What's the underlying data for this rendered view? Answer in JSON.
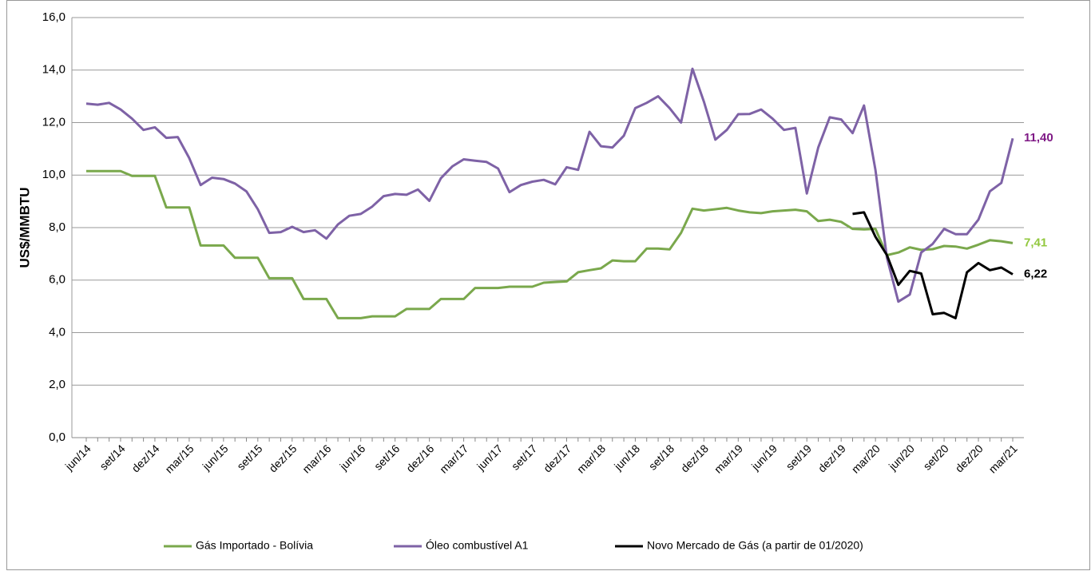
{
  "chart_data": {
    "type": "line",
    "ylabel": "US$/MMBTU",
    "categories": [
      "jun/14",
      null,
      null,
      "set/14",
      null,
      null,
      "dez/14",
      null,
      null,
      "mar/15",
      null,
      null,
      "jun/15",
      null,
      null,
      "set/15",
      null,
      null,
      "dez/15",
      null,
      null,
      "mar/16",
      null,
      null,
      "jun/16",
      null,
      null,
      "set/16",
      null,
      null,
      "dez/16",
      null,
      null,
      "mar/17",
      null,
      null,
      "jun/17",
      null,
      null,
      "set/17",
      null,
      null,
      "dez/17",
      null,
      null,
      "mar/18",
      null,
      null,
      "jun/18",
      null,
      null,
      "set/18",
      null,
      null,
      "dez/18",
      null,
      null,
      "mar/19",
      null,
      null,
      "jun/19",
      null,
      null,
      "set/19",
      null,
      null,
      "dez/19",
      null,
      null,
      "mar/20",
      null,
      null,
      "jun/20",
      null,
      null,
      "set/20",
      null,
      null,
      "dez/20",
      null,
      null,
      "mar/21"
    ],
    "series": [
      {
        "name": "Gás Importado - Bolívia",
        "color": "#7aa84c",
        "label_color": "#92c83e",
        "values": [
          10.15,
          10.15,
          10.15,
          10.15,
          9.97,
          9.97,
          9.97,
          8.77,
          8.77,
          8.77,
          7.32,
          7.32,
          7.32,
          6.85,
          6.85,
          6.85,
          6.07,
          6.07,
          6.07,
          5.28,
          5.28,
          5.28,
          4.55,
          4.55,
          4.55,
          4.62,
          4.62,
          4.62,
          4.9,
          4.9,
          4.9,
          5.28,
          5.28,
          5.28,
          5.7,
          5.7,
          5.7,
          5.75,
          5.75,
          5.75,
          5.9,
          5.93,
          5.95,
          6.3,
          6.38,
          6.45,
          6.75,
          6.72,
          6.72,
          7.2,
          7.2,
          7.17,
          7.8,
          8.72,
          8.65,
          8.7,
          8.75,
          8.65,
          8.58,
          8.55,
          8.62,
          8.65,
          8.68,
          8.62,
          8.25,
          8.3,
          8.22,
          7.95,
          7.93,
          7.95,
          6.95,
          7.05,
          7.25,
          7.15,
          7.18,
          7.3,
          7.28,
          7.2,
          7.35,
          7.52,
          7.48,
          7.41
        ],
        "value_labels": [
          null,
          null,
          null,
          null,
          null,
          null,
          null,
          null,
          null,
          null,
          null,
          null,
          null,
          null,
          null,
          null,
          null,
          null,
          null,
          null,
          null,
          null,
          null,
          null,
          null,
          null,
          null,
          null,
          null,
          null,
          null,
          null,
          null,
          null,
          null,
          null,
          null,
          null,
          null,
          null,
          null,
          null,
          null,
          null,
          null,
          null,
          null,
          null,
          null,
          null,
          null,
          null,
          null,
          null,
          null,
          null,
          null,
          null,
          null,
          null,
          null,
          null,
          null,
          null,
          null,
          null,
          null,
          null,
          null,
          null,
          null,
          null,
          null,
          null,
          null,
          null,
          null,
          null,
          null,
          null,
          null,
          "7,41"
        ]
      },
      {
        "name": "Óleo combustível A1",
        "color": "#7e62a6",
        "label_color": "#7f1a86",
        "values": [
          12.72,
          12.68,
          12.75,
          12.5,
          12.15,
          11.72,
          11.82,
          11.42,
          11.45,
          10.65,
          9.62,
          9.9,
          9.85,
          9.68,
          9.38,
          8.7,
          7.8,
          7.83,
          8.03,
          7.83,
          7.9,
          7.58,
          8.12,
          8.45,
          8.52,
          8.8,
          9.2,
          9.28,
          9.25,
          9.45,
          9.02,
          9.88,
          10.33,
          10.6,
          10.55,
          10.5,
          10.25,
          9.35,
          9.62,
          9.75,
          9.82,
          9.65,
          10.3,
          10.2,
          11.65,
          11.1,
          11.05,
          11.5,
          12.55,
          12.75,
          13.0,
          12.55,
          12.0,
          14.05,
          12.8,
          11.35,
          11.72,
          12.32,
          12.33,
          12.5,
          12.15,
          11.72,
          11.8,
          9.3,
          11.05,
          12.2,
          12.12,
          11.6,
          12.65,
          10.2,
          6.85,
          5.18,
          5.45,
          7.05,
          7.38,
          7.95,
          7.75,
          7.75,
          8.3,
          9.38,
          9.7,
          11.4
        ],
        "value_labels": [
          null,
          null,
          null,
          null,
          null,
          null,
          null,
          null,
          null,
          null,
          null,
          null,
          null,
          null,
          null,
          null,
          null,
          null,
          null,
          null,
          null,
          null,
          null,
          null,
          null,
          null,
          null,
          null,
          null,
          null,
          null,
          null,
          null,
          null,
          null,
          null,
          null,
          null,
          null,
          null,
          null,
          null,
          null,
          null,
          null,
          null,
          null,
          null,
          null,
          null,
          null,
          null,
          null,
          null,
          null,
          null,
          null,
          null,
          null,
          null,
          null,
          null,
          null,
          null,
          null,
          null,
          null,
          null,
          null,
          null,
          null,
          null,
          null,
          null,
          null,
          null,
          null,
          null,
          null,
          null,
          null,
          "11,40"
        ]
      },
      {
        "name": "Novo Mercado de Gás (a partir de 01/2020)",
        "color": "#000000",
        "label_color": "#000000",
        "values": [
          null,
          null,
          null,
          null,
          null,
          null,
          null,
          null,
          null,
          null,
          null,
          null,
          null,
          null,
          null,
          null,
          null,
          null,
          null,
          null,
          null,
          null,
          null,
          null,
          null,
          null,
          null,
          null,
          null,
          null,
          null,
          null,
          null,
          null,
          null,
          null,
          null,
          null,
          null,
          null,
          null,
          null,
          null,
          null,
          null,
          null,
          null,
          null,
          null,
          null,
          null,
          null,
          null,
          null,
          null,
          null,
          null,
          null,
          null,
          null,
          null,
          null,
          null,
          null,
          null,
          null,
          null,
          8.52,
          8.58,
          7.65,
          6.95,
          5.82,
          6.35,
          6.25,
          4.7,
          4.75,
          4.55,
          6.3,
          6.65,
          6.38,
          6.48,
          6.22
        ],
        "value_labels": [
          null,
          null,
          null,
          null,
          null,
          null,
          null,
          null,
          null,
          null,
          null,
          null,
          null,
          null,
          null,
          null,
          null,
          null,
          null,
          null,
          null,
          null,
          null,
          null,
          null,
          null,
          null,
          null,
          null,
          null,
          null,
          null,
          null,
          null,
          null,
          null,
          null,
          null,
          null,
          null,
          null,
          null,
          null,
          null,
          null,
          null,
          null,
          null,
          null,
          null,
          null,
          null,
          null,
          null,
          null,
          null,
          null,
          null,
          null,
          null,
          null,
          null,
          null,
          null,
          null,
          null,
          null,
          null,
          null,
          null,
          null,
          null,
          null,
          null,
          null,
          null,
          null,
          null,
          null,
          null,
          null,
          "6,22"
        ]
      }
    ],
    "ylim": [
      0,
      16
    ],
    "yticks": [
      {
        "value": 0,
        "label": "0,0"
      },
      {
        "value": 2,
        "label": "2,0"
      },
      {
        "value": 4,
        "label": "4,0"
      },
      {
        "value": 6,
        "label": "6,0"
      },
      {
        "value": 8,
        "label": "8,0"
      },
      {
        "value": 10,
        "label": "10,0"
      },
      {
        "value": 12,
        "label": "12,0"
      },
      {
        "value": 14,
        "label": "14,0"
      },
      {
        "value": 16,
        "label": "16,0"
      }
    ],
    "grid": true
  }
}
